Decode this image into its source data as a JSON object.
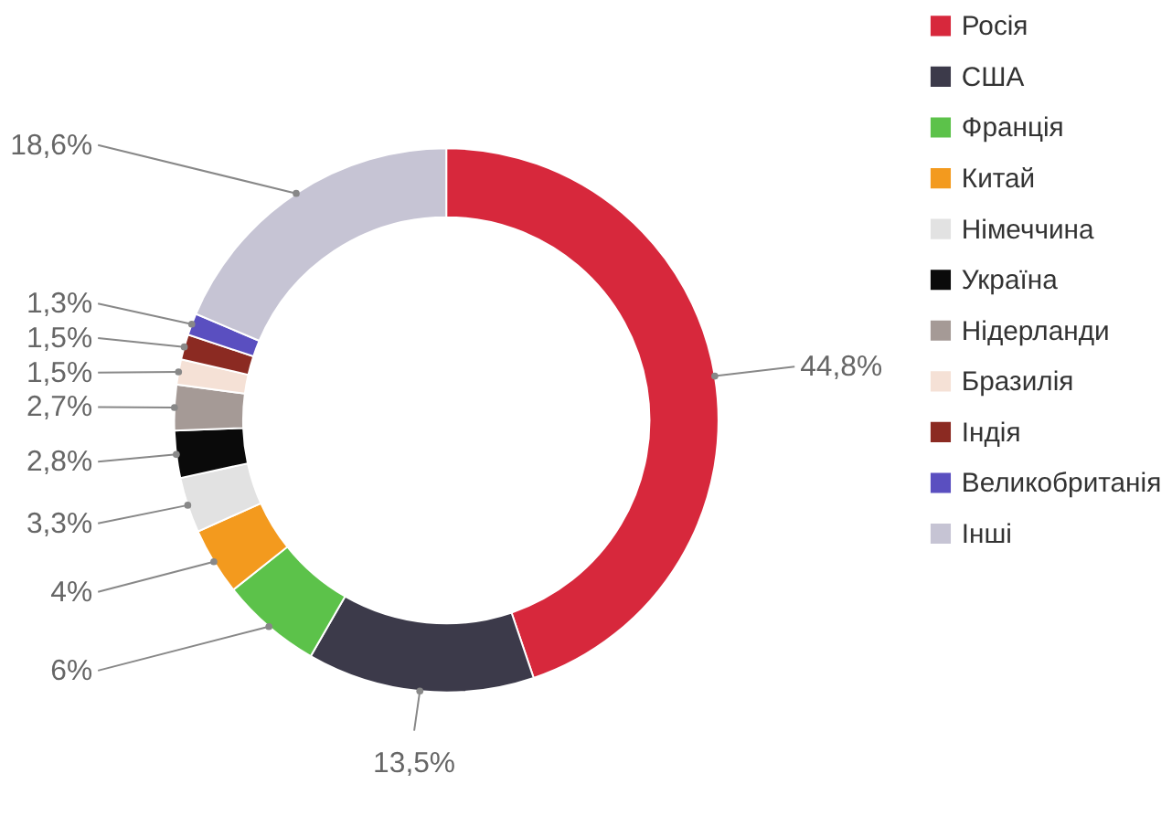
{
  "chart_data": {
    "type": "donut",
    "categories": [
      "Росія",
      "США",
      "Франція",
      "Китай",
      "Німеччина",
      "Україна",
      "Нідерланди",
      "Бразилія",
      "Індія",
      "Великобританія",
      "Інші"
    ],
    "values": [
      44.8,
      13.5,
      6,
      4,
      3.3,
      2.8,
      2.7,
      1.5,
      1.5,
      1.3,
      18.6
    ],
    "value_labels": [
      "44,8%",
      "13,5%",
      "6%",
      "4%",
      "3,3%",
      "2,8%",
      "2,7%",
      "1,5%",
      "1,5%",
      "1,3%",
      "18,6%"
    ],
    "colors": [
      "#d7283c",
      "#3c3a4a",
      "#5cc24a",
      "#f39a1e",
      "#e2e2e2",
      "#0a0a0a",
      "#a59a96",
      "#f5e1d6",
      "#8b2a22",
      "#5a4fc0",
      "#c6c4d4"
    ],
    "legend": "right"
  }
}
